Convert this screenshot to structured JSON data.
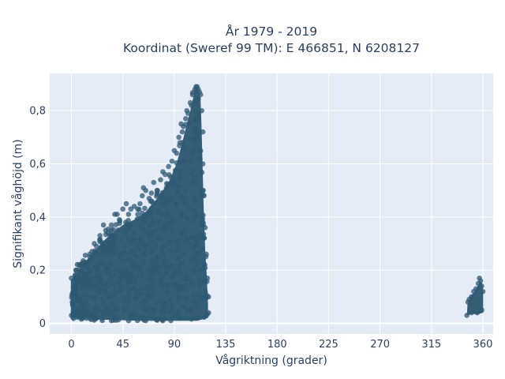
{
  "chart_data": {
    "type": "scatter",
    "title_lines": [
      "År 1979 - 2019",
      "Koordinat (Sweref 99 TM): E 466851, N 6208127"
    ],
    "xlabel": "Vågriktning (grader)",
    "ylabel": "Signifikant våghöjd (m)",
    "xlim": [
      -19,
      369
    ],
    "ylim": [
      -0.04,
      0.94
    ],
    "xticks": [
      0,
      45,
      90,
      135,
      180,
      225,
      270,
      315,
      360
    ],
    "xtick_labels": [
      "0",
      "45",
      "90",
      "135",
      "180",
      "225",
      "270",
      "315",
      "360"
    ],
    "yticks": [
      0,
      0.2,
      0.4,
      0.6,
      0.8
    ],
    "ytick_labels": [
      "0",
      "0,2",
      "0,4",
      "0,6",
      "0,8"
    ],
    "grid": true,
    "legend": "none",
    "marker_color": "#2e5a73",
    "plot_background": "#e5ecf6",
    "series": [
      {
        "points": [
          [
            0,
            0.17
          ],
          [
            2,
            0.16
          ],
          [
            5,
            0.17
          ],
          [
            8,
            0.22
          ],
          [
            10,
            0.19
          ],
          [
            13,
            0.23
          ],
          [
            16,
            0.26
          ],
          [
            18,
            0.27
          ],
          [
            20,
            0.3
          ],
          [
            22,
            0.29
          ],
          [
            25,
            0.33
          ],
          [
            28,
            0.37
          ],
          [
            30,
            0.35
          ],
          [
            32,
            0.34
          ],
          [
            35,
            0.37
          ],
          [
            38,
            0.41
          ],
          [
            40,
            0.41
          ],
          [
            42,
            0.39
          ],
          [
            45,
            0.43
          ],
          [
            48,
            0.45
          ],
          [
            50,
            0.41
          ],
          [
            52,
            0.43
          ],
          [
            55,
            0.44
          ],
          [
            58,
            0.43
          ],
          [
            60,
            0.45
          ],
          [
            62,
            0.48
          ],
          [
            63,
            0.51
          ],
          [
            65,
            0.5
          ],
          [
            68,
            0.47
          ],
          [
            70,
            0.49
          ],
          [
            72,
            0.53
          ],
          [
            75,
            0.5
          ],
          [
            78,
            0.54
          ],
          [
            80,
            0.57
          ],
          [
            82,
            0.56
          ],
          [
            85,
            0.59
          ],
          [
            88,
            0.61
          ],
          [
            90,
            0.65
          ],
          [
            92,
            0.64
          ],
          [
            94,
            0.7
          ],
          [
            95,
            0.68
          ],
          [
            96,
            0.75
          ],
          [
            97,
            0.72
          ],
          [
            98,
            0.74
          ],
          [
            100,
            0.77
          ],
          [
            101,
            0.8
          ],
          [
            102,
            0.79
          ],
          [
            104,
            0.83
          ],
          [
            105,
            0.82
          ],
          [
            106,
            0.86
          ],
          [
            108,
            0.88
          ],
          [
            109,
            0.89
          ],
          [
            110,
            0.89
          ],
          [
            111,
            0.88
          ],
          [
            112,
            0.87
          ],
          [
            113,
            0.86
          ],
          [
            114,
            0.8
          ],
          [
            115,
            0.72
          ],
          [
            115,
            0.6
          ],
          [
            116,
            0.48
          ],
          [
            117,
            0.36
          ],
          [
            118,
            0.26
          ],
          [
            119,
            0.17
          ],
          [
            120,
            0.1
          ],
          [
            120,
            0.04
          ],
          [
            0,
            0.03
          ],
          [
            10,
            0.02
          ],
          [
            20,
            0.02
          ],
          [
            35,
            0.01
          ],
          [
            50,
            0.01
          ],
          [
            65,
            0.01
          ],
          [
            80,
            0.01
          ],
          [
            95,
            0.02
          ],
          [
            110,
            0.02
          ],
          [
            118,
            0.03
          ],
          [
            346,
            0.03
          ],
          [
            347,
            0.08
          ],
          [
            348,
            0.09
          ],
          [
            350,
            0.1
          ],
          [
            352,
            0.12
          ],
          [
            354,
            0.13
          ],
          [
            356,
            0.15
          ],
          [
            357,
            0.17
          ],
          [
            358,
            0.16
          ],
          [
            359,
            0.14
          ],
          [
            360,
            0.12
          ],
          [
            359,
            0.05
          ],
          [
            355,
            0.04
          ],
          [
            350,
            0.04
          ]
        ]
      }
    ]
  }
}
